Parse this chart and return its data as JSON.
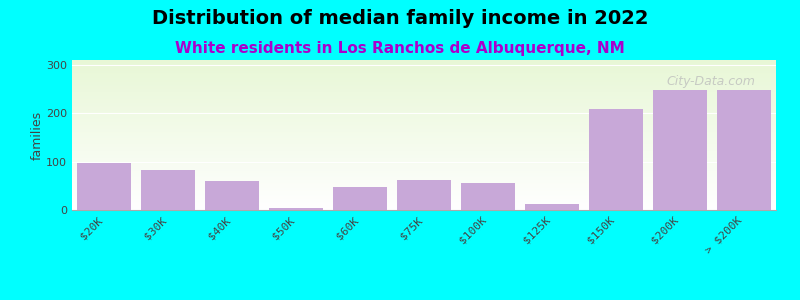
{
  "title": "Distribution of median family income in 2022",
  "subtitle": "White residents in Los Ranchos de Albuquerque, NM",
  "categories": [
    "$20K",
    "$30K",
    "$40K",
    "$50K",
    "$60K",
    "$75K",
    "$100K",
    "$125K",
    "$150K",
    "$200K",
    "> $200K"
  ],
  "values": [
    97,
    82,
    60,
    5,
    48,
    63,
    55,
    13,
    208,
    248,
    248
  ],
  "bar_color": "#c8a8d8",
  "background_color": "#00FFFF",
  "ylabel": "families",
  "yticks": [
    0,
    100,
    200,
    300
  ],
  "ylim": [
    0,
    310
  ],
  "title_fontsize": 14,
  "subtitle_fontsize": 11,
  "watermark": "City-Data.com"
}
